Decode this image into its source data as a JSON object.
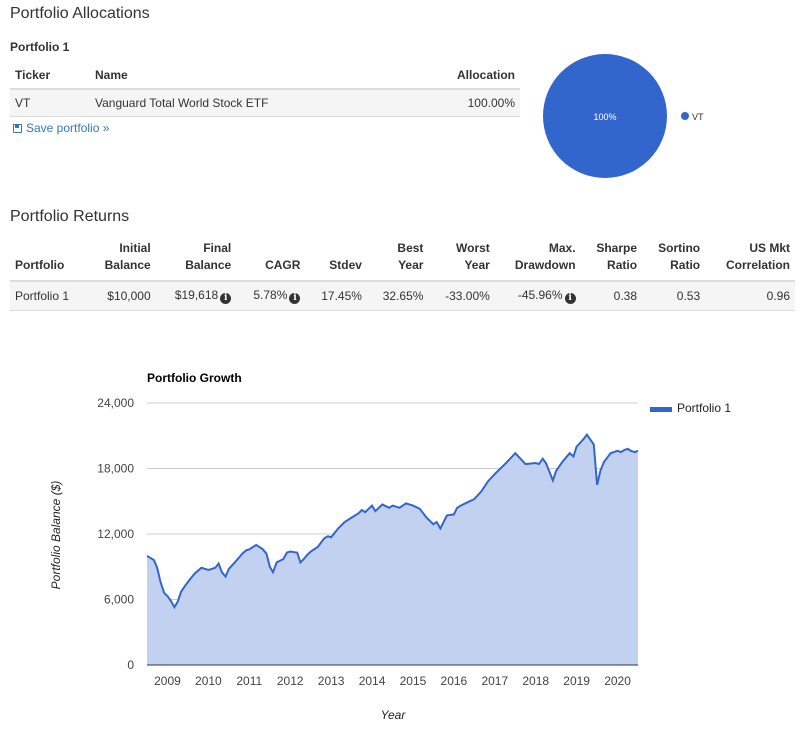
{
  "allocations": {
    "title": "Portfolio Allocations",
    "portfolio_name": "Portfolio 1",
    "headers": {
      "ticker": "Ticker",
      "name": "Name",
      "allocation": "Allocation"
    },
    "rows": [
      {
        "ticker": "VT",
        "name": "Vanguard Total World Stock ETF",
        "allocation": "100.00%"
      }
    ],
    "save_label": "Save portfolio »",
    "save_icon": "floppy-disk-icon",
    "pie": {
      "slice_label": "100%",
      "legend_label": "VT",
      "color": "#3366cc"
    }
  },
  "returns": {
    "title": "Portfolio Returns",
    "headers": {
      "portfolio": "Portfolio",
      "initial_1": "Initial",
      "initial_2": "Balance",
      "final_1": "Final",
      "final_2": "Balance",
      "cagr": "CAGR",
      "stdev": "Stdev",
      "best_1": "Best",
      "best_2": "Year",
      "worst_1": "Worst",
      "worst_2": "Year",
      "maxdd_1": "Max.",
      "maxdd_2": "Drawdown",
      "sharpe_1": "Sharpe",
      "sharpe_2": "Ratio",
      "sortino_1": "Sortino",
      "sortino_2": "Ratio",
      "usmkt_1": "US Mkt",
      "usmkt_2": "Correlation"
    },
    "row": {
      "portfolio": "Portfolio 1",
      "initial": "$10,000",
      "final": "$19,618",
      "cagr": "5.78%",
      "stdev": "17.45%",
      "best": "32.65%",
      "worst": "-33.00%",
      "maxdd": "-45.96%",
      "sharpe": "0.38",
      "sortino": "0.53",
      "usmkt": "0.96"
    },
    "info_glyph": "i"
  },
  "chart_data": {
    "type": "area",
    "title": "Portfolio Growth",
    "xlabel": "Year",
    "ylabel": "Portfolio Balance ($)",
    "ylim": [
      0,
      24000
    ],
    "yticks": [
      0,
      6000,
      12000,
      18000,
      24000
    ],
    "ytick_labels": [
      "0",
      "6,000",
      "12,000",
      "18,000",
      "24,000"
    ],
    "xlim": [
      2008.5,
      2020.5
    ],
    "xticks": [
      2009,
      2010,
      2011,
      2012,
      2013,
      2014,
      2015,
      2016,
      2017,
      2018,
      2019,
      2020
    ],
    "grid": true,
    "legend_position": "right",
    "color": "#3366cc",
    "fill_color": "#c3d1f0",
    "series": [
      {
        "name": "Portfolio 1",
        "x": [
          2008.5,
          2008.67,
          2008.75,
          2008.83,
          2008.92,
          2009.0,
          2009.08,
          2009.17,
          2009.25,
          2009.33,
          2009.42,
          2009.5,
          2009.58,
          2009.67,
          2009.83,
          2010.0,
          2010.17,
          2010.25,
          2010.33,
          2010.42,
          2010.5,
          2010.67,
          2010.83,
          2010.92,
          2011.0,
          2011.17,
          2011.25,
          2011.33,
          2011.42,
          2011.5,
          2011.58,
          2011.67,
          2011.83,
          2011.92,
          2012.0,
          2012.17,
          2012.25,
          2012.33,
          2012.42,
          2012.5,
          2012.67,
          2012.83,
          2012.92,
          2013.0,
          2013.17,
          2013.33,
          2013.5,
          2013.67,
          2013.75,
          2013.83,
          2014.0,
          2014.08,
          2014.25,
          2014.42,
          2014.5,
          2014.67,
          2014.83,
          2015.0,
          2015.17,
          2015.33,
          2015.5,
          2015.58,
          2015.67,
          2015.83,
          2016.0,
          2016.08,
          2016.17,
          2016.33,
          2016.5,
          2016.67,
          2016.83,
          2017.0,
          2017.25,
          2017.5,
          2017.75,
          2018.0,
          2018.08,
          2018.17,
          2018.25,
          2018.42,
          2018.5,
          2018.67,
          2018.83,
          2018.92,
          2019.0,
          2019.17,
          2019.25,
          2019.42,
          2019.5,
          2019.58,
          2019.67,
          2019.83,
          2020.0,
          2020.08,
          2020.17,
          2020.25,
          2020.33,
          2020.42,
          2020.5
        ],
        "values": [
          10000,
          9600,
          8900,
          7600,
          6600,
          6300,
          5900,
          5300,
          5800,
          6700,
          7200,
          7600,
          8000,
          8400,
          8900,
          8700,
          8900,
          9300,
          8500,
          8100,
          8800,
          9500,
          10200,
          10500,
          10600,
          11000,
          10800,
          10600,
          10200,
          9000,
          8500,
          9400,
          9700,
          10300,
          10400,
          10300,
          9400,
          9700,
          10100,
          10400,
          10800,
          11600,
          11800,
          11700,
          12500,
          13100,
          13500,
          13900,
          14200,
          14000,
          14600,
          14100,
          14700,
          14400,
          14600,
          14400,
          14800,
          14600,
          14300,
          13500,
          12900,
          13100,
          12500,
          13700,
          13800,
          14400,
          14600,
          14900,
          15200,
          15900,
          16800,
          17500,
          18400,
          19400,
          18400,
          18500,
          18400,
          18900,
          18500,
          16900,
          17800,
          18700,
          19400,
          19100,
          20000,
          20700,
          21100,
          20200,
          16500,
          17800,
          18600,
          19400,
          19618,
          19500,
          19700,
          19800,
          19600,
          19500,
          19618
        ]
      }
    ]
  }
}
